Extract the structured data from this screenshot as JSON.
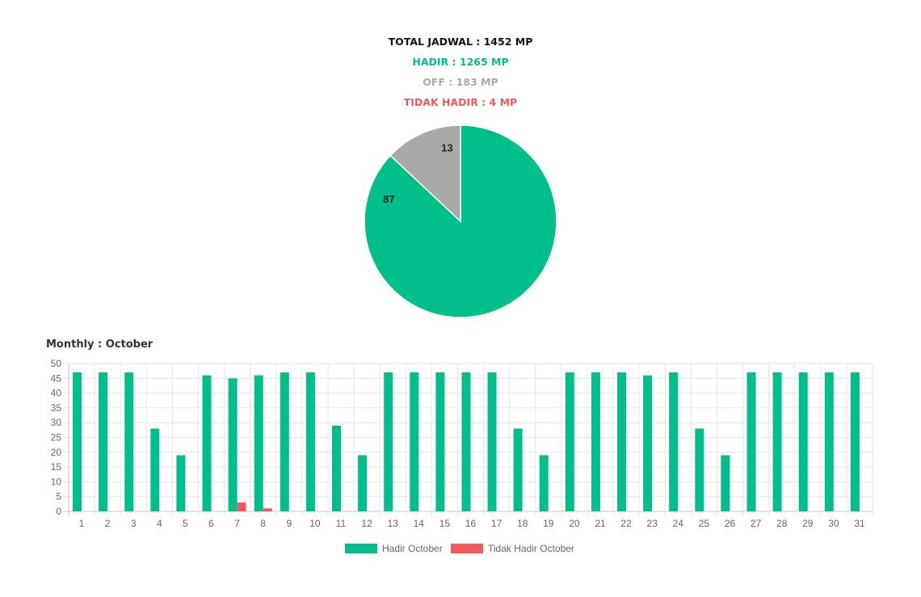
{
  "summary": {
    "total_label": "TOTAL JADWAL : ",
    "total_value": "1452 MP",
    "hadir_label": "HADIR : ",
    "hadir_value": "1265 MP",
    "off_label": "OFF : ",
    "off_value": "183 MP",
    "tidak_label": "TIDAK HADIR : ",
    "tidak_value": "4 MP"
  },
  "monthly_title": "Monthly : October",
  "colors": {
    "hadir": "#00bf8a",
    "off": "#a9a9a9",
    "tidak_hadir": "#f25a5a",
    "grid": "#e6e6e6",
    "axis": "#c8c8c8"
  },
  "chart_data": [
    {
      "type": "pie",
      "slices": [
        {
          "value": 87,
          "label": "87",
          "color": "#00bf8a"
        },
        {
          "value": 13,
          "label": "13",
          "color": "#a9a9a9"
        }
      ]
    },
    {
      "type": "bar",
      "title": "Monthly : October",
      "categories": [
        "1",
        "2",
        "3",
        "4",
        "5",
        "6",
        "7",
        "8",
        "9",
        "10",
        "11",
        "12",
        "13",
        "14",
        "15",
        "16",
        "17",
        "18",
        "19",
        "20",
        "21",
        "22",
        "23",
        "24",
        "25",
        "26",
        "27",
        "28",
        "29",
        "30",
        "31"
      ],
      "series": [
        {
          "name": "Hadir October",
          "color": "#00bf8a",
          "values": [
            47,
            47,
            47,
            28,
            19,
            46,
            45,
            46,
            47,
            47,
            29,
            19,
            47,
            47,
            47,
            47,
            47,
            28,
            19,
            47,
            47,
            47,
            46,
            47,
            28,
            19,
            47,
            47,
            47,
            47,
            47
          ]
        },
        {
          "name": "Tidak Hadir October",
          "color": "#f25a5a",
          "values": [
            0,
            0,
            0,
            0,
            0,
            0,
            3,
            1,
            0,
            0,
            0,
            0,
            0,
            0,
            0,
            0,
            0,
            0,
            0,
            0,
            0,
            0,
            0,
            0,
            0,
            0,
            0,
            0,
            0,
            0,
            0
          ]
        }
      ],
      "ylim": [
        0,
        50
      ],
      "yticks": [
        0,
        5,
        10,
        15,
        20,
        25,
        30,
        35,
        40,
        45,
        50
      ],
      "grid": true,
      "legend_position": "bottom"
    }
  ]
}
